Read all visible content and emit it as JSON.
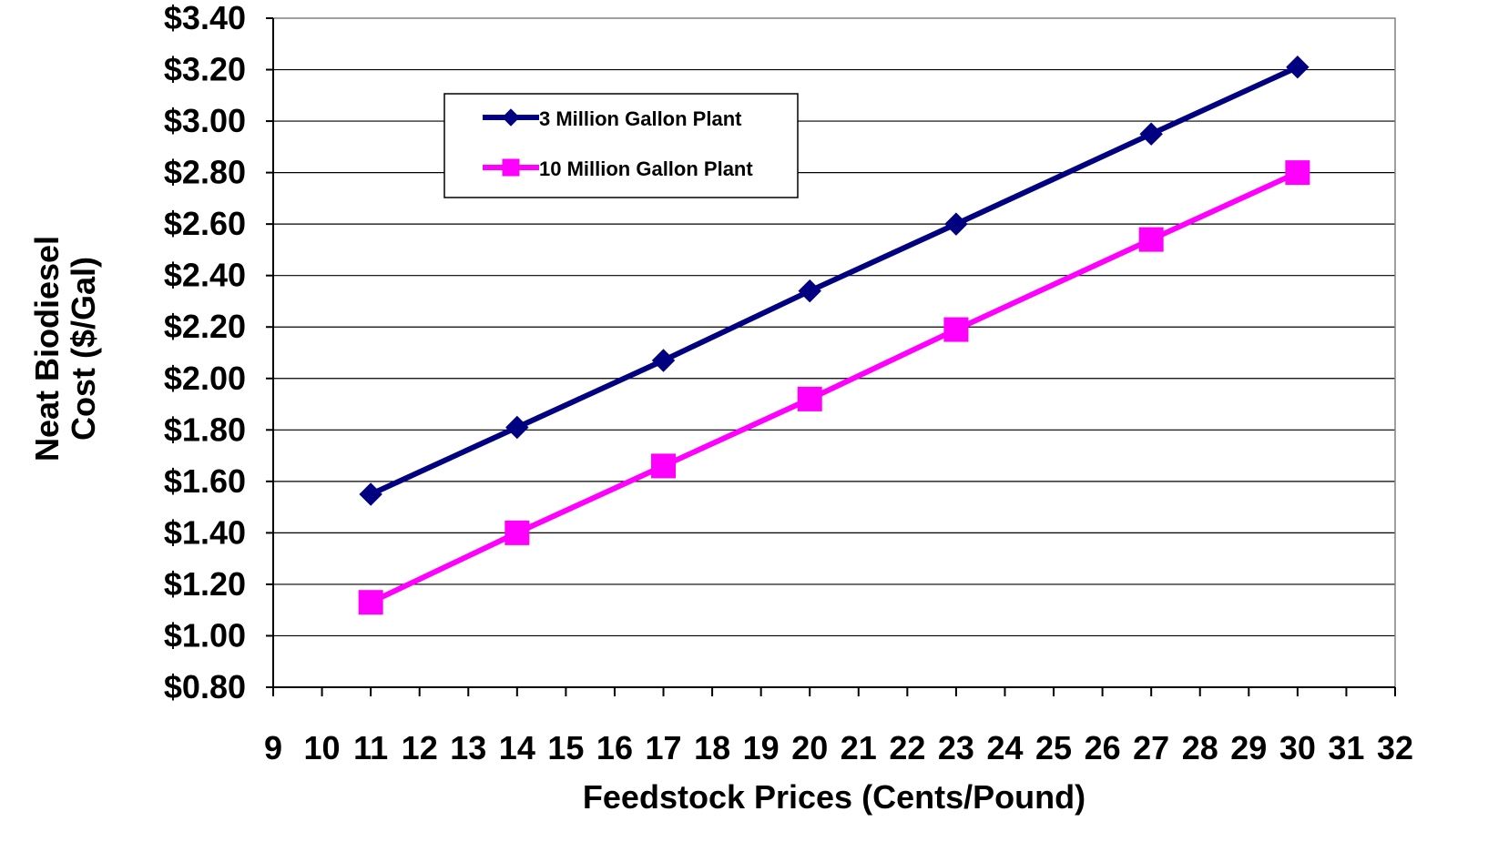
{
  "chart_data": {
    "type": "line",
    "xlabel": "Feedstock Prices (Cents/Pound)",
    "ylabel_lines": [
      "Neat Biodiesel",
      "Cost ($/Gal)"
    ],
    "xlim": [
      9,
      32
    ],
    "ylim": [
      0.8,
      3.4
    ],
    "x_ticks": [
      "9",
      "10",
      "11",
      "12",
      "13",
      "14",
      "15",
      "16",
      "17",
      "18",
      "19",
      "20",
      "21",
      "22",
      "23",
      "24",
      "25",
      "26",
      "27",
      "28",
      "29",
      "30",
      "31",
      "32"
    ],
    "y_ticks": [
      "$3.40",
      "$3.20",
      "$3.00",
      "$2.80",
      "$2.60",
      "$2.40",
      "$2.20",
      "$2.00",
      "$1.80",
      "$1.60",
      "$1.40",
      "$1.20",
      "$1.00",
      "$0.80"
    ],
    "y_tick_values": [
      3.4,
      3.2,
      3.0,
      2.8,
      2.6,
      2.4,
      2.2,
      2.0,
      1.8,
      1.6,
      1.4,
      1.2,
      1.0,
      0.8
    ],
    "grid": "horizontal",
    "legend_position": "top-left",
    "series": [
      {
        "name": "3 Million Gallon Plant",
        "color": "#000080",
        "marker": "diamond",
        "x": [
          11,
          14,
          17,
          20,
          23,
          27,
          30
        ],
        "y": [
          1.55,
          1.81,
          2.07,
          2.34,
          2.6,
          2.95,
          3.21
        ]
      },
      {
        "name": "10 Million Gallon Plant",
        "color": "#ff00ff",
        "marker": "square",
        "x": [
          11,
          14,
          17,
          20,
          23,
          27,
          30
        ],
        "y": [
          1.13,
          1.4,
          1.66,
          1.92,
          2.19,
          2.54,
          2.8
        ]
      }
    ]
  }
}
